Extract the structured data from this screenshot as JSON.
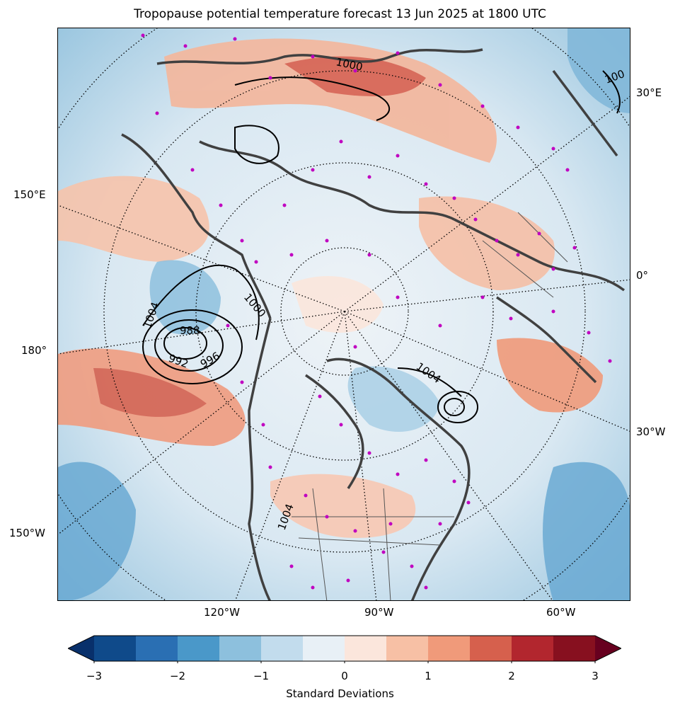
{
  "title": "Tropopause potential temperature forecast 13 Jun 2025 at 1800 UTC",
  "map": {
    "projection": "north-polar-stereographic",
    "longitude_labels_left": [
      "150°E",
      "180°",
      "150°W"
    ],
    "longitude_labels_right": [
      "30°E",
      "0°",
      "30°W"
    ],
    "longitude_labels_bottom": [
      "120°W",
      "90°W",
      "60°W"
    ],
    "pressure_contour_labels": [
      "1000",
      "1004",
      "988",
      "996",
      "992",
      "1000",
      "1004",
      "1004",
      "100"
    ],
    "colors": {
      "coast": "#404040",
      "station_marker": "#c000c0",
      "isobar": "#000000"
    }
  },
  "colorbar": {
    "label": "Standard Deviations",
    "ticks": [
      "−3",
      "−2",
      "−1",
      "0",
      "1",
      "2",
      "3"
    ],
    "range": [
      -3,
      3
    ],
    "colors": [
      "#08306b",
      "#0f4a8a",
      "#2a6fb3",
      "#4a98c9",
      "#8dc0dd",
      "#c2dced",
      "#e8f0f6",
      "#fbe6dc",
      "#f7c0a5",
      "#f09a7a",
      "#d6604d",
      "#b2262e",
      "#87101f",
      "#67001f"
    ]
  }
}
